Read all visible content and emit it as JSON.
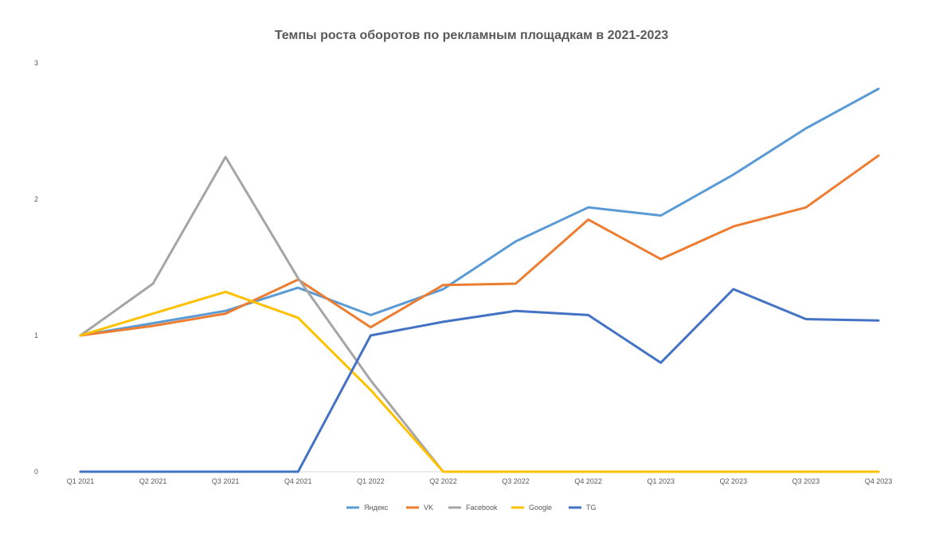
{
  "chart_data": {
    "type": "line",
    "title": "Темпы роста оборотов по рекламным площадкам в 2021-2023",
    "xlabel": "",
    "ylabel": "",
    "ylim": [
      0,
      3
    ],
    "y_ticks": [
      0,
      1,
      2,
      3
    ],
    "grid": false,
    "legend_position": "bottom",
    "categories": [
      "Q1 2021",
      "Q2 2021",
      "Q3 2021",
      "Q4 2021",
      "Q1 2022",
      "Q2 2022",
      "Q3 2022",
      "Q4 2022",
      "Q1 2023",
      "Q2 2023",
      "Q3 2023",
      "Q4 2023"
    ],
    "series": [
      {
        "name": "Яндекс",
        "color": "#5B9BD5",
        "values": [
          1.0,
          1.09,
          1.18,
          1.35,
          1.15,
          1.34,
          1.69,
          1.94,
          1.88,
          2.18,
          2.52,
          2.81
        ]
      },
      {
        "name": "VK",
        "color": "#ED7D31",
        "values": [
          1.0,
          1.07,
          1.16,
          1.41,
          1.06,
          1.37,
          1.38,
          1.85,
          1.56,
          1.8,
          1.94,
          2.32
        ]
      },
      {
        "name": "Facebook",
        "color": "#A5A5A5",
        "values": [
          1.0,
          1.38,
          2.31,
          1.42,
          0.67,
          0.0,
          0.0,
          0.0,
          0.0,
          0.0,
          0.0,
          0.0
        ]
      },
      {
        "name": "Google",
        "color": "#FFC000",
        "values": [
          1.0,
          1.16,
          1.32,
          1.13,
          0.6,
          0.0,
          0.0,
          0.0,
          0.0,
          0.0,
          0.0,
          0.0
        ]
      },
      {
        "name": "TG",
        "color": "#4472C4",
        "values": [
          0.0,
          0.0,
          0.0,
          0.0,
          1.0,
          1.1,
          1.18,
          1.15,
          0.8,
          1.34,
          1.12,
          1.11
        ]
      }
    ]
  }
}
